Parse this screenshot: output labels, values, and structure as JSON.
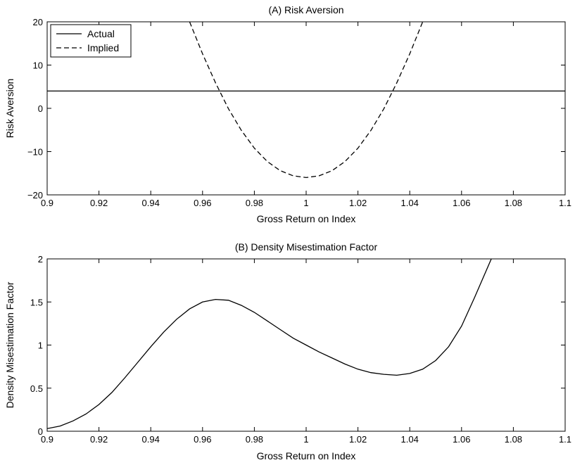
{
  "chart_data": [
    {
      "type": "line",
      "title": "(A) Risk Aversion",
      "xlabel": "Gross Return on Index",
      "ylabel": "Risk Aversion",
      "xlim": [
        0.9,
        1.1
      ],
      "ylim": [
        -20,
        20
      ],
      "xticks": [
        0.9,
        0.92,
        0.94,
        0.96,
        0.98,
        1,
        1.02,
        1.04,
        1.06,
        1.08,
        1.1
      ],
      "yticks": [
        -20,
        -10,
        0,
        10,
        20
      ],
      "xtick_labels": [
        "0.9",
        "0.92",
        "0.94",
        "0.96",
        "0.98",
        "1",
        "1.02",
        "1.04",
        "1.06",
        "1.08",
        "1.1"
      ],
      "ytick_labels": [
        "−20",
        "−10",
        "0",
        "10",
        "20"
      ],
      "grid": false,
      "legend": {
        "position": "top-left",
        "entries": [
          "Actual",
          "Implied"
        ]
      },
      "series": [
        {
          "name": "Actual",
          "style": "solid",
          "x": [
            0.9,
            1.1
          ],
          "y": [
            4,
            4
          ]
        },
        {
          "name": "Implied",
          "style": "dashed",
          "x": [
            0.955,
            0.96,
            0.965,
            0.97,
            0.975,
            0.98,
            0.985,
            0.99,
            0.995,
            1.0,
            1.005,
            1.01,
            1.015,
            1.02,
            1.025,
            1.03,
            1.035,
            1.04,
            1.045
          ],
          "y": [
            20.0,
            12.6,
            5.9,
            -0.1,
            -5.1,
            -9.2,
            -12.3,
            -14.4,
            -15.6,
            -16.0,
            -15.6,
            -14.4,
            -12.3,
            -9.2,
            -5.1,
            -0.1,
            5.9,
            12.6,
            20.0
          ]
        }
      ]
    },
    {
      "type": "line",
      "title": "(B) Density Misestimation Factor",
      "xlabel": "Gross Return on Index",
      "ylabel": "Density Misestimation Factor",
      "xlim": [
        0.9,
        1.1
      ],
      "ylim": [
        0,
        2
      ],
      "xticks": [
        0.9,
        0.92,
        0.94,
        0.96,
        0.98,
        1,
        1.02,
        1.04,
        1.06,
        1.08,
        1.1
      ],
      "yticks": [
        0,
        0.5,
        1,
        1.5,
        2
      ],
      "xtick_labels": [
        "0.9",
        "0.92",
        "0.94",
        "0.96",
        "0.98",
        "1",
        "1.02",
        "1.04",
        "1.06",
        "1.08",
        "1.1"
      ],
      "ytick_labels": [
        "0",
        "0.5",
        "1",
        "1.5",
        "2"
      ],
      "grid": false,
      "series": [
        {
          "style": "solid",
          "x": [
            0.9,
            0.905,
            0.91,
            0.915,
            0.92,
            0.925,
            0.93,
            0.935,
            0.94,
            0.945,
            0.95,
            0.955,
            0.96,
            0.965,
            0.97,
            0.975,
            0.98,
            0.985,
            0.99,
            0.995,
            1.0,
            1.005,
            1.01,
            1.015,
            1.02,
            1.025,
            1.03,
            1.035,
            1.04,
            1.045,
            1.05,
            1.055,
            1.06,
            1.065,
            1.0715
          ],
          "y": [
            0.03,
            0.06,
            0.12,
            0.2,
            0.31,
            0.45,
            0.62,
            0.8,
            0.98,
            1.15,
            1.3,
            1.42,
            1.5,
            1.53,
            1.52,
            1.46,
            1.38,
            1.28,
            1.18,
            1.08,
            1.0,
            0.92,
            0.85,
            0.78,
            0.72,
            0.68,
            0.66,
            0.65,
            0.67,
            0.72,
            0.82,
            0.98,
            1.22,
            1.55,
            2.0
          ]
        }
      ]
    }
  ]
}
